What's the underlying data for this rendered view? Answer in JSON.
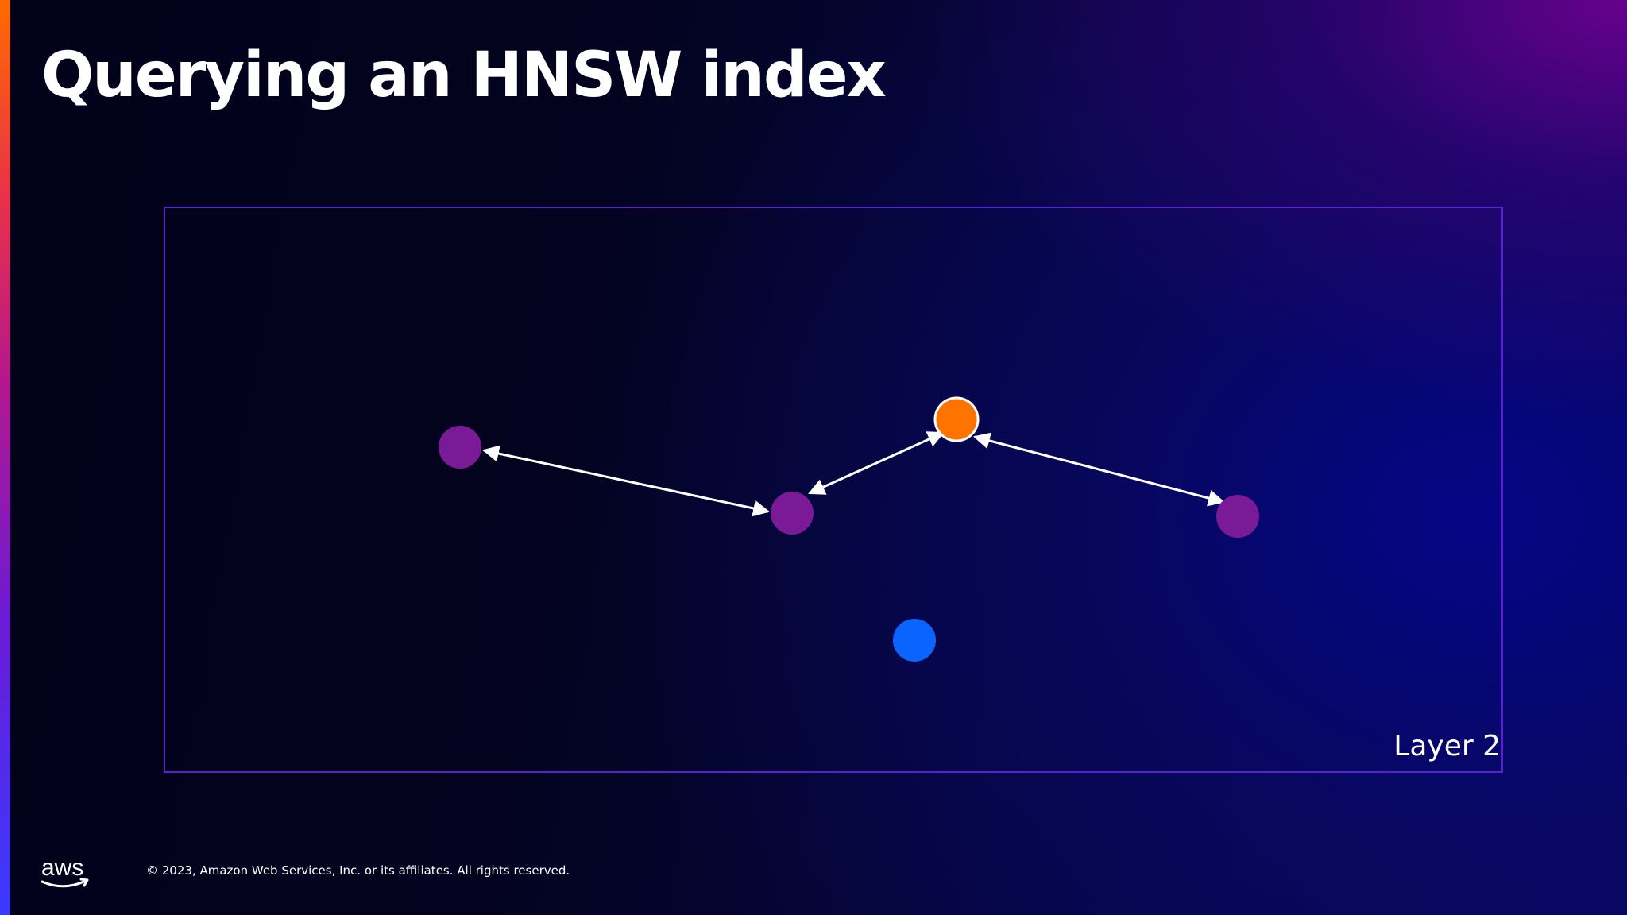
{
  "slide": {
    "title": "Querying an HNSW index",
    "layer_label": "Layer 2",
    "logo_text": "aws",
    "copyright": "© 2023, Amazon Web Services, Inc. or its affiliates. All rights reserved."
  },
  "diagram": {
    "nodes": [
      {
        "id": "node-left",
        "role": "graph-node",
        "color": "#7a1a96"
      },
      {
        "id": "node-center",
        "role": "graph-node",
        "color": "#7a1a96"
      },
      {
        "id": "node-entry",
        "role": "entry-point",
        "color": "#ff7300",
        "outline": "#ffffff"
      },
      {
        "id": "node-right",
        "role": "graph-node",
        "color": "#7a1a96"
      },
      {
        "id": "node-query",
        "role": "query-point",
        "color": "#0a64ff"
      }
    ],
    "edges": [
      {
        "from": "node-left",
        "to": "node-center",
        "bidirectional": true
      },
      {
        "from": "node-center",
        "to": "node-entry",
        "bidirectional": true
      },
      {
        "from": "node-entry",
        "to": "node-right",
        "bidirectional": true
      }
    ],
    "frame_color": "#5a1fd0",
    "edge_color": "#ffffff"
  }
}
